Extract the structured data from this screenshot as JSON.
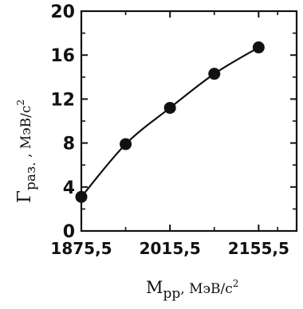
{
  "chart_data": {
    "type": "line",
    "title": "",
    "xlabel_main": "M",
    "xlabel_sub": "pp",
    "xlabel_unit": ", МэВ/с",
    "xlabel_sup": "2",
    "ylabel_main": "Γ",
    "ylabel_sub": "раз.",
    "ylabel_unit": " ,  МэВ/с",
    "ylabel_sup": "2",
    "xlim": [
      1875.5,
      2215.5
    ],
    "ylim": [
      0,
      20
    ],
    "x_ticks": [
      1875.5,
      2015.5,
      2155.5
    ],
    "x_tick_labels": [
      "1875,5",
      "2015,5",
      "2155,5"
    ],
    "y_ticks": [
      0,
      4,
      8,
      12,
      16,
      20
    ],
    "y_tick_labels": [
      "0",
      "4",
      "8",
      "12",
      "16",
      "20"
    ],
    "grid": false,
    "series": [
      {
        "x": [
          1875.5,
          1945.5,
          2015.5,
          2085.5,
          2155.5
        ],
        "y": [
          3.1,
          7.9,
          11.2,
          14.3,
          16.7
        ],
        "color": "#111111",
        "marker": "filled-circle"
      }
    ]
  }
}
